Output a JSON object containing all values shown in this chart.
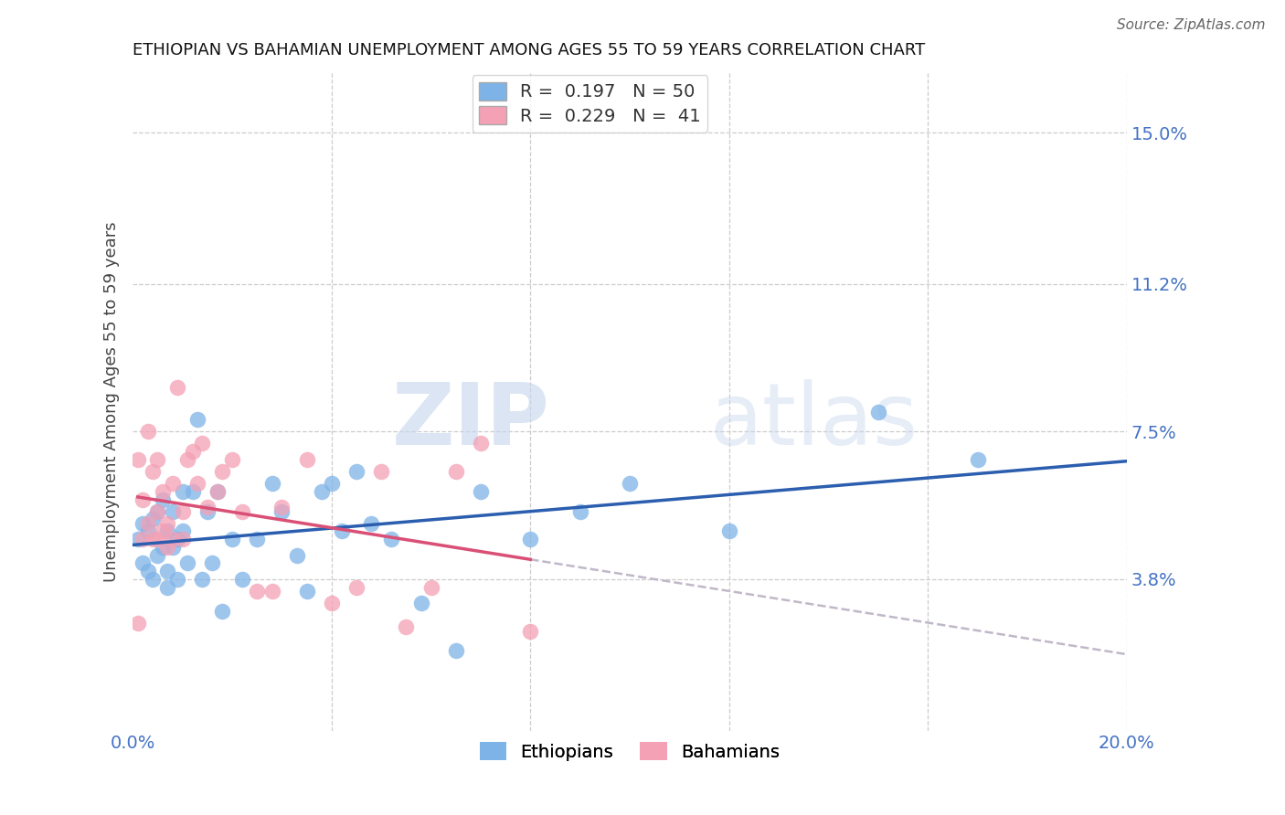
{
  "title": "ETHIOPIAN VS BAHAMIAN UNEMPLOYMENT AMONG AGES 55 TO 59 YEARS CORRELATION CHART",
  "source": "Source: ZipAtlas.com",
  "ylabel": "Unemployment Among Ages 55 to 59 years",
  "xlim": [
    0.0,
    0.2
  ],
  "ylim": [
    0.0,
    0.165
  ],
  "yticks": [
    0.038,
    0.075,
    0.112,
    0.15
  ],
  "ytick_labels": [
    "3.8%",
    "7.5%",
    "11.2%",
    "15.0%"
  ],
  "xticks": [
    0.0,
    0.04,
    0.08,
    0.12,
    0.16,
    0.2
  ],
  "xtick_labels": [
    "0.0%",
    "",
    "",
    "",
    "",
    "20.0%"
  ],
  "ethiopian_color": "#7EB3E8",
  "bahamian_color": "#F4A0B5",
  "trend_eth_color": "#2B5EAF",
  "trend_bah_color": "#D94F75",
  "trend_dash_color": "#C0B8C8",
  "R_eth": 0.197,
  "N_eth": 50,
  "R_bah": 0.229,
  "N_bah": 41,
  "ethiopians_x": [
    0.001,
    0.002,
    0.002,
    0.003,
    0.003,
    0.004,
    0.004,
    0.005,
    0.005,
    0.006,
    0.006,
    0.007,
    0.007,
    0.007,
    0.008,
    0.008,
    0.009,
    0.009,
    0.01,
    0.01,
    0.011,
    0.012,
    0.013,
    0.014,
    0.015,
    0.016,
    0.017,
    0.018,
    0.02,
    0.022,
    0.025,
    0.028,
    0.03,
    0.033,
    0.035,
    0.038,
    0.04,
    0.042,
    0.045,
    0.048,
    0.052,
    0.058,
    0.065,
    0.07,
    0.08,
    0.09,
    0.1,
    0.12,
    0.15,
    0.17
  ],
  "ethiopians_y": [
    0.048,
    0.052,
    0.042,
    0.05,
    0.04,
    0.053,
    0.038,
    0.055,
    0.044,
    0.058,
    0.046,
    0.04,
    0.05,
    0.036,
    0.046,
    0.055,
    0.048,
    0.038,
    0.05,
    0.06,
    0.042,
    0.06,
    0.078,
    0.038,
    0.055,
    0.042,
    0.06,
    0.03,
    0.048,
    0.038,
    0.048,
    0.062,
    0.055,
    0.044,
    0.035,
    0.06,
    0.062,
    0.05,
    0.065,
    0.052,
    0.048,
    0.032,
    0.02,
    0.06,
    0.048,
    0.055,
    0.062,
    0.05,
    0.08,
    0.068
  ],
  "bahamians_x": [
    0.001,
    0.001,
    0.002,
    0.002,
    0.003,
    0.003,
    0.004,
    0.004,
    0.005,
    0.005,
    0.005,
    0.006,
    0.006,
    0.007,
    0.007,
    0.008,
    0.008,
    0.009,
    0.01,
    0.01,
    0.011,
    0.012,
    0.013,
    0.014,
    0.015,
    0.017,
    0.018,
    0.02,
    0.022,
    0.025,
    0.028,
    0.03,
    0.035,
    0.04,
    0.045,
    0.05,
    0.055,
    0.06,
    0.065,
    0.07,
    0.08
  ],
  "bahamians_y": [
    0.027,
    0.068,
    0.058,
    0.048,
    0.075,
    0.052,
    0.065,
    0.048,
    0.055,
    0.068,
    0.048,
    0.06,
    0.05,
    0.046,
    0.052,
    0.062,
    0.048,
    0.086,
    0.048,
    0.055,
    0.068,
    0.07,
    0.062,
    0.072,
    0.056,
    0.06,
    0.065,
    0.068,
    0.055,
    0.035,
    0.035,
    0.056,
    0.068,
    0.032,
    0.036,
    0.065,
    0.026,
    0.036,
    0.065,
    0.072,
    0.025
  ],
  "legend_label_eth": "Ethiopians",
  "legend_label_bah": "Bahamians",
  "watermark_zip": "ZIP",
  "watermark_atlas": "atlas",
  "background_color": "#FFFFFF",
  "grid_color": "#CCCCCC"
}
